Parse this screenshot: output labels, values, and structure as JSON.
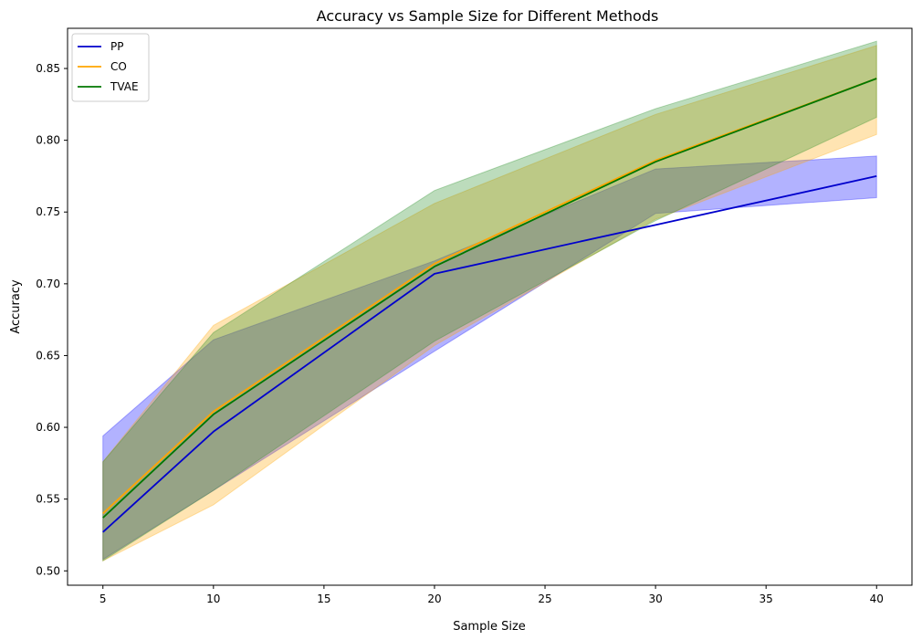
{
  "chart_data": {
    "type": "line",
    "title": "Accuracy vs Sample Size for Different Methods",
    "xlabel": "Sample Size",
    "ylabel": "Accuracy",
    "xlim": [
      3.4,
      41.6
    ],
    "ylim": [
      0.49,
      0.878
    ],
    "xticks": [
      5,
      10,
      15,
      20,
      25,
      30,
      35,
      40
    ],
    "yticks": [
      0.5,
      0.55,
      0.6,
      0.65,
      0.7,
      0.75,
      0.8,
      0.85
    ],
    "x": [
      5,
      10,
      20,
      30,
      40
    ],
    "grid": false,
    "legend_position": "upper-left",
    "series": [
      {
        "name": "PP",
        "color": "#0000cc",
        "values": [
          0.527,
          0.597,
          0.707,
          0.741,
          0.775
        ],
        "lower": [
          0.508,
          0.556,
          0.653,
          0.749,
          0.76
        ],
        "upper": [
          0.594,
          0.661,
          0.716,
          0.78,
          0.789
        ]
      },
      {
        "name": "CO",
        "color": "#ffa500",
        "values": [
          0.54,
          0.611,
          0.714,
          0.786,
          0.843
        ],
        "lower": [
          0.507,
          0.546,
          0.657,
          0.745,
          0.804
        ],
        "upper": [
          0.576,
          0.671,
          0.756,
          0.818,
          0.866
        ]
      },
      {
        "name": "TVAE",
        "color": "#007700",
        "values": [
          0.537,
          0.609,
          0.712,
          0.785,
          0.843
        ],
        "lower": [
          0.507,
          0.556,
          0.66,
          0.744,
          0.816
        ],
        "upper": [
          0.576,
          0.666,
          0.765,
          0.822,
          0.869
        ]
      }
    ],
    "band_fill_colors": [
      "#0000ff",
      "#ffa500",
      "#228b22"
    ]
  }
}
